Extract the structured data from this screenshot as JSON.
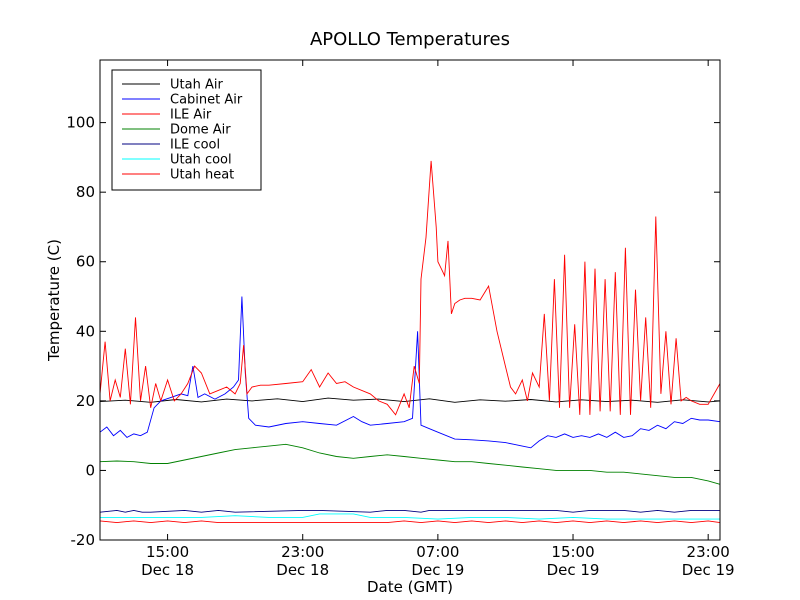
{
  "chart_data": {
    "type": "line",
    "title": "APOLLO Temperatures",
    "xlabel": "Date (GMT)",
    "ylabel": "Temperature (C)",
    "xlim": [
      11.0,
      47.7
    ],
    "ylim": [
      -20,
      118
    ],
    "x_unit": "hours since Dec 18 00:00 GMT",
    "yticks": [
      {
        "value": -20,
        "label": "-20"
      },
      {
        "value": 0,
        "label": "0"
      },
      {
        "value": 20,
        "label": "20"
      },
      {
        "value": 40,
        "label": "40"
      },
      {
        "value": 60,
        "label": "60"
      },
      {
        "value": 80,
        "label": "80"
      },
      {
        "value": 100,
        "label": "100"
      }
    ],
    "xticks": [
      {
        "value": 15,
        "time": "15:00",
        "date": "Dec 18"
      },
      {
        "value": 23,
        "time": "23:00",
        "date": "Dec 18"
      },
      {
        "value": 31,
        "time": "07:00",
        "date": "Dec 19"
      },
      {
        "value": 39,
        "time": "15:00",
        "date": "Dec 19"
      },
      {
        "value": 47,
        "time": "23:00",
        "date": "Dec 19"
      }
    ],
    "legend_position": "top-left",
    "series": [
      {
        "name": "Utah Air",
        "color": "#000000",
        "x": [
          11.0,
          12.5,
          14.0,
          15.5,
          17.0,
          18.5,
          20.0,
          21.5,
          23.0,
          24.5,
          26.0,
          27.5,
          29.0,
          30.5,
          32.0,
          33.5,
          35.0,
          36.5,
          38.0,
          39.5,
          41.0,
          42.5,
          44.0,
          45.5,
          47.0,
          47.7
        ],
        "y": [
          19.8,
          20.2,
          19.6,
          20.4,
          19.7,
          20.5,
          20.0,
          20.6,
          19.8,
          20.8,
          20.2,
          20.5,
          19.8,
          20.6,
          19.6,
          20.3,
          19.9,
          20.4,
          19.7,
          20.3,
          19.8,
          20.2,
          19.6,
          20.3,
          19.7,
          20.0
        ]
      },
      {
        "name": "Cabinet Air",
        "color": "#0000ff",
        "x": [
          11.0,
          11.4,
          11.8,
          12.2,
          12.6,
          13.0,
          13.4,
          13.8,
          14.2,
          14.6,
          15.2,
          15.8,
          16.2,
          16.5,
          16.8,
          17.2,
          17.8,
          18.4,
          18.9,
          19.2,
          19.4,
          19.6,
          19.8,
          20.2,
          21.0,
          22.0,
          23.0,
          24.0,
          25.0,
          26.0,
          26.5,
          27.0,
          28.0,
          29.0,
          29.5,
          29.8,
          30.0,
          30.5,
          31.0,
          32.0,
          33.0,
          34.0,
          35.0,
          35.5,
          36.0,
          36.5,
          37.0,
          37.5,
          38.0,
          38.5,
          39.0,
          39.5,
          40.0,
          40.5,
          41.0,
          41.5,
          42.0,
          42.5,
          43.0,
          43.5,
          44.0,
          44.5,
          45.0,
          45.5,
          46.0,
          46.5,
          47.0,
          47.7
        ],
        "y": [
          11.0,
          12.5,
          10.0,
          11.5,
          9.5,
          10.5,
          10.0,
          11.0,
          18.0,
          20.0,
          21.0,
          22.0,
          21.5,
          30.0,
          21.0,
          22.0,
          20.5,
          22.0,
          24.0,
          26.0,
          50.0,
          28.0,
          15.0,
          13.0,
          12.5,
          13.5,
          14.0,
          13.5,
          13.0,
          15.5,
          14.0,
          13.0,
          13.5,
          14.0,
          15.0,
          40.0,
          13.0,
          12.0,
          11.0,
          9.0,
          8.8,
          8.5,
          8.0,
          7.5,
          7.0,
          6.5,
          8.5,
          10.0,
          9.5,
          10.5,
          9.5,
          10.0,
          9.5,
          10.5,
          9.5,
          11.0,
          9.5,
          10.0,
          12.0,
          11.5,
          13.0,
          12.0,
          14.0,
          13.5,
          15.0,
          14.5,
          14.5,
          14.0
        ]
      },
      {
        "name": "ILE Air",
        "color": "#ff0000",
        "x": [
          11.0,
          11.3,
          11.6,
          11.9,
          12.2,
          12.5,
          12.8,
          13.1,
          13.4,
          13.7,
          14.0,
          14.3,
          14.6,
          15.0,
          15.4,
          15.8,
          16.2,
          16.6,
          17.0,
          17.5,
          18.0,
          18.5,
          19.0,
          19.3,
          19.5,
          19.7,
          20.0,
          20.5,
          21.0,
          22.0,
          23.0,
          23.5,
          24.0,
          24.5,
          25.0,
          25.5,
          26.0,
          27.0,
          27.5,
          28.0,
          28.5,
          29.0,
          29.3,
          29.6,
          29.9,
          30.0,
          30.3,
          30.6,
          30.9,
          31.0,
          31.2,
          31.4,
          31.6,
          31.8,
          32.0,
          32.3,
          32.6,
          33.0,
          33.5,
          34.0,
          34.5,
          35.0,
          35.3,
          35.6,
          36.0,
          36.3,
          36.6,
          37.0,
          37.3,
          37.6,
          37.9,
          38.2,
          38.5,
          38.8,
          39.1,
          39.4,
          39.7,
          40.0,
          40.3,
          40.6,
          40.9,
          41.2,
          41.5,
          41.8,
          42.1,
          42.4,
          42.7,
          43.0,
          43.3,
          43.6,
          43.9,
          44.2,
          44.5,
          44.8,
          45.1,
          45.4,
          45.7,
          46.0,
          46.5,
          47.0,
          47.7
        ],
        "y": [
          22.0,
          37.0,
          20.0,
          26.0,
          21.0,
          35.0,
          19.0,
          44.0,
          20.0,
          30.0,
          18.0,
          25.0,
          20.0,
          26.0,
          20.0,
          22.0,
          25.0,
          30.0,
          28.0,
          22.0,
          23.0,
          24.0,
          22.0,
          25.0,
          36.0,
          22.0,
          24.0,
          24.5,
          24.5,
          25.0,
          25.5,
          29.0,
          24.0,
          28.0,
          25.0,
          25.5,
          24.0,
          22.0,
          20.0,
          19.0,
          16.0,
          22.0,
          18.0,
          30.0,
          25.0,
          55.0,
          67.0,
          89.0,
          70.0,
          60.0,
          58.0,
          56.0,
          66.0,
          45.0,
          48.0,
          49.0,
          49.5,
          49.5,
          49.0,
          53.0,
          40.0,
          30.0,
          24.0,
          22.0,
          26.0,
          20.0,
          28.0,
          24.0,
          45.0,
          20.0,
          55.0,
          18.0,
          62.0,
          18.0,
          42.0,
          16.0,
          60.0,
          16.0,
          58.0,
          17.0,
          55.0,
          17.0,
          57.0,
          16.0,
          64.0,
          16.0,
          52.0,
          20.0,
          44.0,
          18.0,
          73.0,
          22.0,
          40.0,
          19.0,
          38.0,
          20.0,
          21.0,
          20.0,
          19.0,
          19.0,
          25.0
        ]
      },
      {
        "name": "Dome Air",
        "color": "#008000",
        "x": [
          11.0,
          12.0,
          13.0,
          14.0,
          15.0,
          16.0,
          17.0,
          18.0,
          19.0,
          20.0,
          21.0,
          22.0,
          23.0,
          24.0,
          25.0,
          26.0,
          27.0,
          28.0,
          29.0,
          30.0,
          31.0,
          32.0,
          33.0,
          34.0,
          35.0,
          36.0,
          37.0,
          38.0,
          39.0,
          40.0,
          41.0,
          42.0,
          43.0,
          44.0,
          45.0,
          46.0,
          47.0,
          47.7
        ],
        "y": [
          2.5,
          2.7,
          2.5,
          2.0,
          2.0,
          3.0,
          4.0,
          5.0,
          6.0,
          6.5,
          7.0,
          7.5,
          6.5,
          5.0,
          4.0,
          3.5,
          4.0,
          4.5,
          4.0,
          3.5,
          3.0,
          2.5,
          2.5,
          2.0,
          1.5,
          1.0,
          0.5,
          0.0,
          0.0,
          0.0,
          -0.5,
          -0.5,
          -1.0,
          -1.5,
          -2.0,
          -2.0,
          -3.0,
          -4.0
        ]
      },
      {
        "name": "ILE cool",
        "color": "#000080",
        "x": [
          11.0,
          12.0,
          12.5,
          13.0,
          13.5,
          14.0,
          16.0,
          17.0,
          18.0,
          19.0,
          23.0,
          24.0,
          27.0,
          28.0,
          29.0,
          30.0,
          30.5,
          33.0,
          36.0,
          37.0,
          38.0,
          39.0,
          40.0,
          42.0,
          43.0,
          44.0,
          45.0,
          46.0,
          47.0,
          47.7
        ],
        "y": [
          -12.0,
          -11.5,
          -12.0,
          -11.5,
          -12.0,
          -12.0,
          -11.5,
          -12.0,
          -11.5,
          -12.0,
          -11.5,
          -11.5,
          -12.0,
          -11.5,
          -11.5,
          -12.0,
          -11.5,
          -11.5,
          -11.5,
          -11.5,
          -11.5,
          -12.0,
          -11.5,
          -11.5,
          -12.0,
          -11.5,
          -12.0,
          -11.5,
          -11.5,
          -11.5
        ]
      },
      {
        "name": "Utah cool",
        "color": "#00ffff",
        "x": [
          11.0,
          15.0,
          17.0,
          19.0,
          21.0,
          23.0,
          24.0,
          25.0,
          26.0,
          27.0,
          29.0,
          31.0,
          33.0,
          35.0,
          37.0,
          39.0,
          41.0,
          43.0,
          45.0,
          47.0,
          47.7
        ],
        "y": [
          -13.5,
          -13.5,
          -13.5,
          -13.0,
          -13.5,
          -13.5,
          -12.5,
          -12.5,
          -12.5,
          -13.5,
          -13.5,
          -14.0,
          -13.5,
          -13.5,
          -14.0,
          -13.5,
          -14.0,
          -14.0,
          -14.0,
          -14.0,
          -14.0
        ]
      },
      {
        "name": "Utah heat",
        "color": "#ff0000",
        "x": [
          11.0,
          12.0,
          13.0,
          14.0,
          15.0,
          16.0,
          17.0,
          18.0,
          19.0,
          20.0,
          21.0,
          22.0,
          23.0,
          24.0,
          25.0,
          26.0,
          27.0,
          28.0,
          29.0,
          30.0,
          31.0,
          32.0,
          33.0,
          34.0,
          35.0,
          36.0,
          37.0,
          38.0,
          39.0,
          40.0,
          41.0,
          42.0,
          43.0,
          44.0,
          45.0,
          46.0,
          47.0,
          47.7
        ],
        "y": [
          -14.5,
          -15.0,
          -14.5,
          -15.0,
          -14.5,
          -15.0,
          -14.5,
          -15.0,
          -15.0,
          -15.0,
          -15.0,
          -15.0,
          -15.0,
          -15.0,
          -15.0,
          -15.0,
          -15.0,
          -15.0,
          -14.5,
          -15.0,
          -14.5,
          -15.0,
          -14.5,
          -15.0,
          -14.5,
          -15.0,
          -14.5,
          -15.0,
          -14.5,
          -15.0,
          -14.5,
          -15.0,
          -14.5,
          -15.0,
          -14.5,
          -15.0,
          -14.5,
          -15.0
        ]
      }
    ]
  }
}
